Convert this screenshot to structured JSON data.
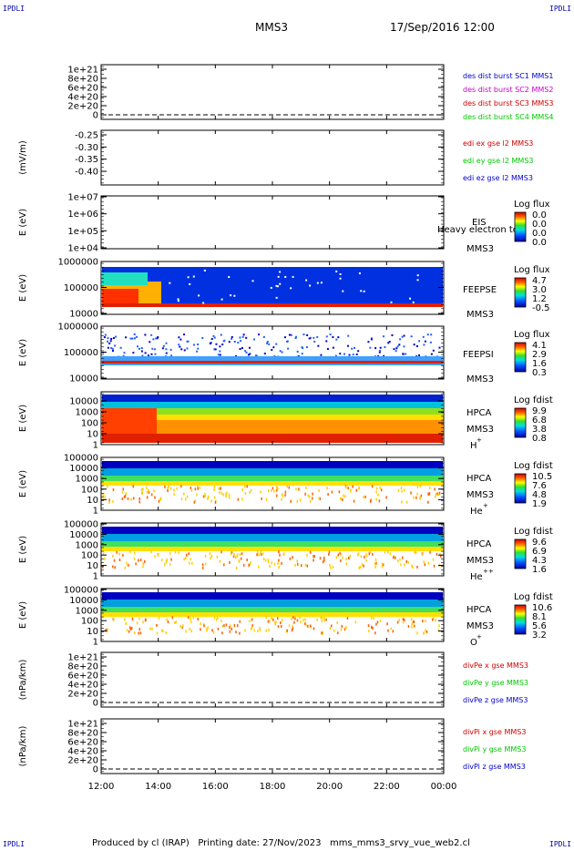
{
  "header": {
    "corner_tag": "IPDLI",
    "spacecraft": "MMS3",
    "datetime": "17/Sep/2016 12:00"
  },
  "footer": {
    "text": "Produced by cl (IRAP)   Printing date: 27/Nov/2023   mms_mms3_srvy_vue_web2.cl"
  },
  "colors": {
    "blue": "#0000c8",
    "magenta": "#c800c8",
    "red": "#d00000",
    "green": "#00c800",
    "background_fill": "#0020d0"
  },
  "chart_data": {
    "type": "heatmap",
    "x_axis": {
      "range": [
        "12:00",
        "00:00"
      ],
      "tick_labels": [
        "12:00",
        "14:00",
        "16:00",
        "18:00",
        "20:00",
        "22:00",
        "00:00"
      ]
    },
    "panels": [
      {
        "id": "des_dist",
        "type": "line",
        "ylabel": "",
        "y_ticks": [
          "1e+21",
          "8e+20",
          "6e+20",
          "4e+20",
          "2e+20",
          "0"
        ],
        "ylim": [
          0,
          1e+21
        ],
        "dashed_zero": true,
        "legend": [
          {
            "text": "des dist burst SC1 MMS1",
            "color": "#0000c8"
          },
          {
            "text": "des dist burst SC2 MMS2",
            "color": "#c800c8"
          },
          {
            "text": "des dist burst SC3 MMS3",
            "color": "#d00000"
          },
          {
            "text": "des dist burst SC4 MMS4",
            "color": "#00c800"
          }
        ]
      },
      {
        "id": "edi_e",
        "type": "line",
        "ylabel": "(mV/m)",
        "y_ticks": [
          "-0.25",
          "-0.30",
          "-0.35",
          "-0.40"
        ],
        "ylim": [
          -0.42,
          -0.23
        ],
        "legend": [
          {
            "text": "edi ex gse l2 MMS3",
            "color": "#d00000"
          },
          {
            "text": "edi ey gse l2 MMS3",
            "color": "#00c800"
          },
          {
            "text": "edi ez gse l2 MMS3",
            "color": "#0000c8"
          }
        ]
      },
      {
        "id": "eis",
        "type": "heatmap",
        "ylabel": "E (eV)",
        "y_ticks": [
          "1e+07",
          "1e+06",
          "1e+05",
          "1e+04"
        ],
        "ylim": [
          10000.0,
          10000000.0
        ],
        "scale": "log",
        "label_lines": [
          "EIS",
          "MMS3"
        ],
        "overlay_text": "Heavy electron to",
        "cbar_title": "Log flux",
        "cbar_ticks": [
          "0.0",
          "0.0",
          "0.0",
          "0.0"
        ]
      },
      {
        "id": "feepse",
        "type": "heatmap",
        "ylabel": "E (eV)",
        "y_ticks": [
          "1000000",
          "100000",
          "10000"
        ],
        "ylim": [
          10000.0,
          1000000.0
        ],
        "scale": "log",
        "label_lines": [
          "FEEPSE",
          "MMS3"
        ],
        "cbar_title": "Log flux",
        "cbar_ticks": [
          "4.7",
          "3.0",
          "1.2",
          "-0.5"
        ]
      },
      {
        "id": "feepsi",
        "type": "heatmap",
        "ylabel": "E (eV)",
        "y_ticks": [
          "1000000",
          "100000",
          "10000"
        ],
        "ylim": [
          10000.0,
          1000000.0
        ],
        "scale": "log",
        "label_lines": [
          "FEEPSI",
          "MMS3"
        ],
        "cbar_title": "Log flux",
        "cbar_ticks": [
          "4.1",
          "2.9",
          "1.6",
          "0.3"
        ]
      },
      {
        "id": "hpca_h",
        "type": "heatmap",
        "ylabel": "E (eV)",
        "y_ticks": [
          "10000",
          "1000",
          "100",
          "10",
          "1"
        ],
        "ylim": [
          1,
          40000.0
        ],
        "scale": "log",
        "label_lines": [
          "HPCA",
          "MMS3"
        ],
        "species": "H",
        "species_sup": "+",
        "cbar_title": "Log fdist",
        "cbar_ticks": [
          "9.9",
          "6.8",
          "3.8",
          "0.8"
        ]
      },
      {
        "id": "hpca_he1",
        "type": "heatmap",
        "ylabel": "E (eV)",
        "y_ticks": [
          "100000",
          "10000",
          "1000",
          "100",
          "10",
          "1"
        ],
        "ylim": [
          1,
          100000.0
        ],
        "scale": "log",
        "label_lines": [
          "HPCA",
          "MMS3"
        ],
        "species": "He",
        "species_sup": "+",
        "cbar_title": "Log fdist",
        "cbar_ticks": [
          "10.5",
          "7.6",
          "4.8",
          "1.9"
        ]
      },
      {
        "id": "hpca_he2",
        "type": "heatmap",
        "ylabel": "E (eV)",
        "y_ticks": [
          "100000",
          "10000",
          "1000",
          "100",
          "10",
          "1"
        ],
        "ylim": [
          1,
          100000.0
        ],
        "scale": "log",
        "label_lines": [
          "HPCA",
          "MMS3"
        ],
        "species": "He",
        "species_sup": "++",
        "cbar_title": "Log fdist",
        "cbar_ticks": [
          "9.6",
          "6.9",
          "4.3",
          "1.6"
        ]
      },
      {
        "id": "hpca_o",
        "type": "heatmap",
        "ylabel": "E (eV)",
        "y_ticks": [
          "100000",
          "10000",
          "1000",
          "100",
          "10",
          "1"
        ],
        "ylim": [
          1,
          100000.0
        ],
        "scale": "log",
        "label_lines": [
          "HPCA",
          "MMS3"
        ],
        "species": "O",
        "species_sup": "+",
        "cbar_title": "Log fdist",
        "cbar_ticks": [
          "10.6",
          "8.1",
          "5.6",
          "3.2"
        ]
      },
      {
        "id": "divpe",
        "type": "line",
        "ylabel": "(nPa/km)",
        "y_ticks": [
          "1e+21",
          "8e+20",
          "6e+20",
          "4e+20",
          "2e+20",
          "0"
        ],
        "ylim": [
          0,
          1e+21
        ],
        "dashed_zero": true,
        "legend": [
          {
            "text": "divPe x gse MMS3",
            "color": "#d00000"
          },
          {
            "text": "divPe y gse MMS3",
            "color": "#00c800"
          },
          {
            "text": "divPe z gse MMS3",
            "color": "#0000c8"
          }
        ]
      },
      {
        "id": "divpi",
        "type": "line",
        "ylabel": "(nPa/km)",
        "y_ticks": [
          "1e+21",
          "8e+20",
          "6e+20",
          "4e+20",
          "2e+20",
          "0"
        ],
        "ylim": [
          0,
          1e+21
        ],
        "dashed_zero": true,
        "legend": [
          {
            "text": "divPi x gse MMS3",
            "color": "#d00000"
          },
          {
            "text": "divPi y gse MMS3",
            "color": "#00c800"
          },
          {
            "text": "divPi z gse MMS3",
            "color": "#0000c8"
          }
        ]
      }
    ]
  }
}
